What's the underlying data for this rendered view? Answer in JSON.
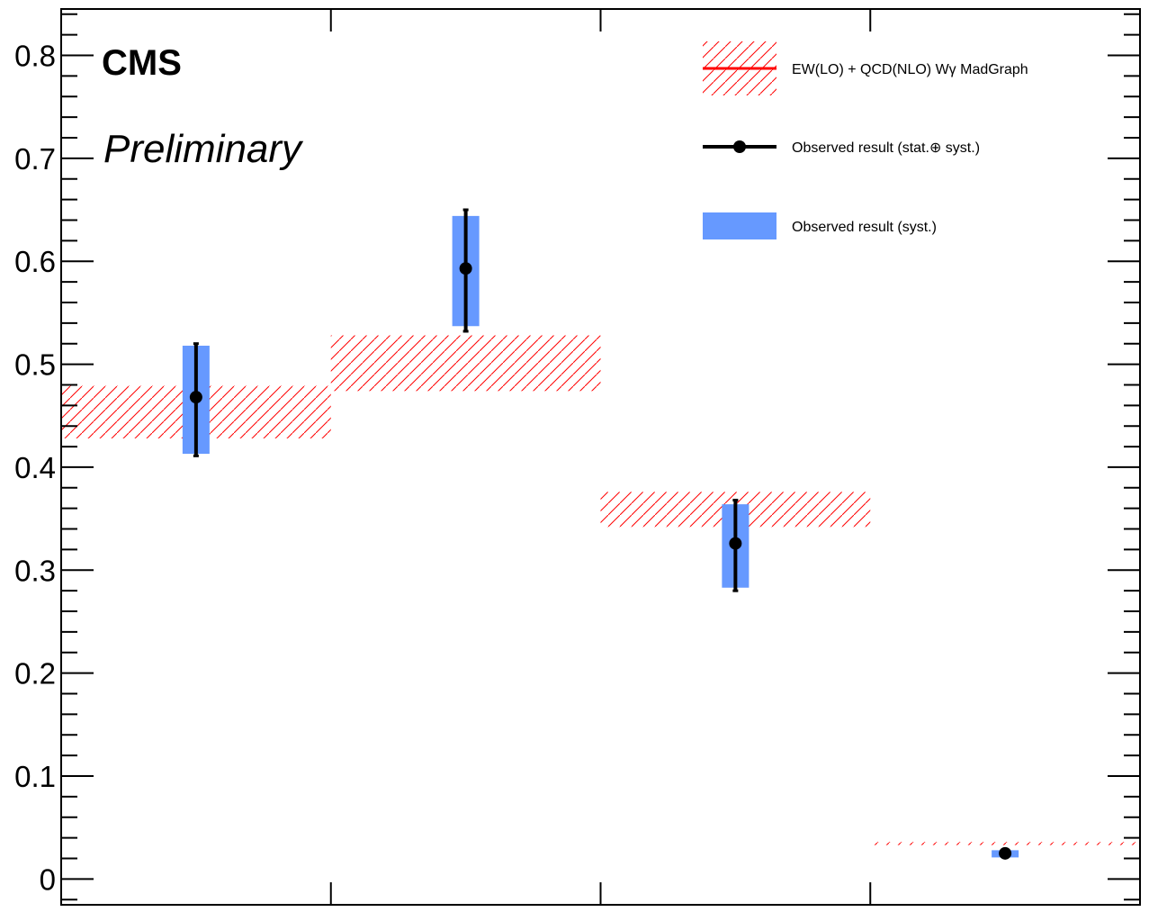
{
  "chart_data": {
    "type": "scatter",
    "title": "",
    "xlabel": "",
    "ylabel": "",
    "ylim": [
      -0.025,
      0.845
    ],
    "n_bins": 4,
    "y_ticks": [
      {
        "value": 0,
        "label": "0"
      },
      {
        "value": 0.1,
        "label": "0.1"
      },
      {
        "value": 0.2,
        "label": "0.2"
      },
      {
        "value": 0.3,
        "label": "0.3"
      },
      {
        "value": 0.4,
        "label": "0.4"
      },
      {
        "value": 0.5,
        "label": "0.5"
      },
      {
        "value": 0.6,
        "label": "0.6"
      },
      {
        "value": 0.7,
        "label": "0.7"
      },
      {
        "value": 0.8,
        "label": "0.8"
      }
    ],
    "experiment_label": "CMS",
    "status_label": "Preliminary",
    "legend": {
      "placement": "top-right",
      "entries": [
        {
          "label": "EW(LO) + QCD(NLO) Wγ MadGraph",
          "style": "hatched-band"
        },
        {
          "label": "Observed result (stat.⊕ syst.)",
          "style": "marker-errorbar"
        },
        {
          "label": "Observed result (syst.)",
          "style": "filled-box"
        }
      ]
    },
    "series": [
      {
        "name": "EW(LO) + QCD(NLO) Wγ MadGraph",
        "type": "band",
        "bins": [
          {
            "bin": 1,
            "low": 0.428,
            "high": 0.479
          },
          {
            "bin": 2,
            "low": 0.474,
            "high": 0.528
          },
          {
            "bin": 3,
            "low": 0.342,
            "high": 0.376
          },
          {
            "bin": 4,
            "low": 0.033,
            "high": 0.036
          }
        ]
      },
      {
        "name": "Observed result (stat.⊕ syst.)",
        "type": "points",
        "bins": [
          {
            "bin": 1,
            "value": 0.468,
            "low": 0.411,
            "high": 0.52
          },
          {
            "bin": 2,
            "value": 0.593,
            "low": 0.532,
            "high": 0.65
          },
          {
            "bin": 3,
            "value": 0.326,
            "low": 0.28,
            "high": 0.368
          },
          {
            "bin": 4,
            "value": 0.025,
            "low": 0.023,
            "high": 0.027
          }
        ]
      },
      {
        "name": "Observed result (syst.)",
        "type": "box",
        "bins": [
          {
            "bin": 1,
            "low": 0.413,
            "high": 0.518
          },
          {
            "bin": 2,
            "low": 0.537,
            "high": 0.644
          },
          {
            "bin": 3,
            "low": 0.283,
            "high": 0.364
          },
          {
            "bin": 4,
            "low": 0.021,
            "high": 0.028
          }
        ]
      }
    ],
    "colors": {
      "band": "#ff0000",
      "syst_box": "#6699ff",
      "points": "#000000",
      "frame": "#000000"
    }
  }
}
